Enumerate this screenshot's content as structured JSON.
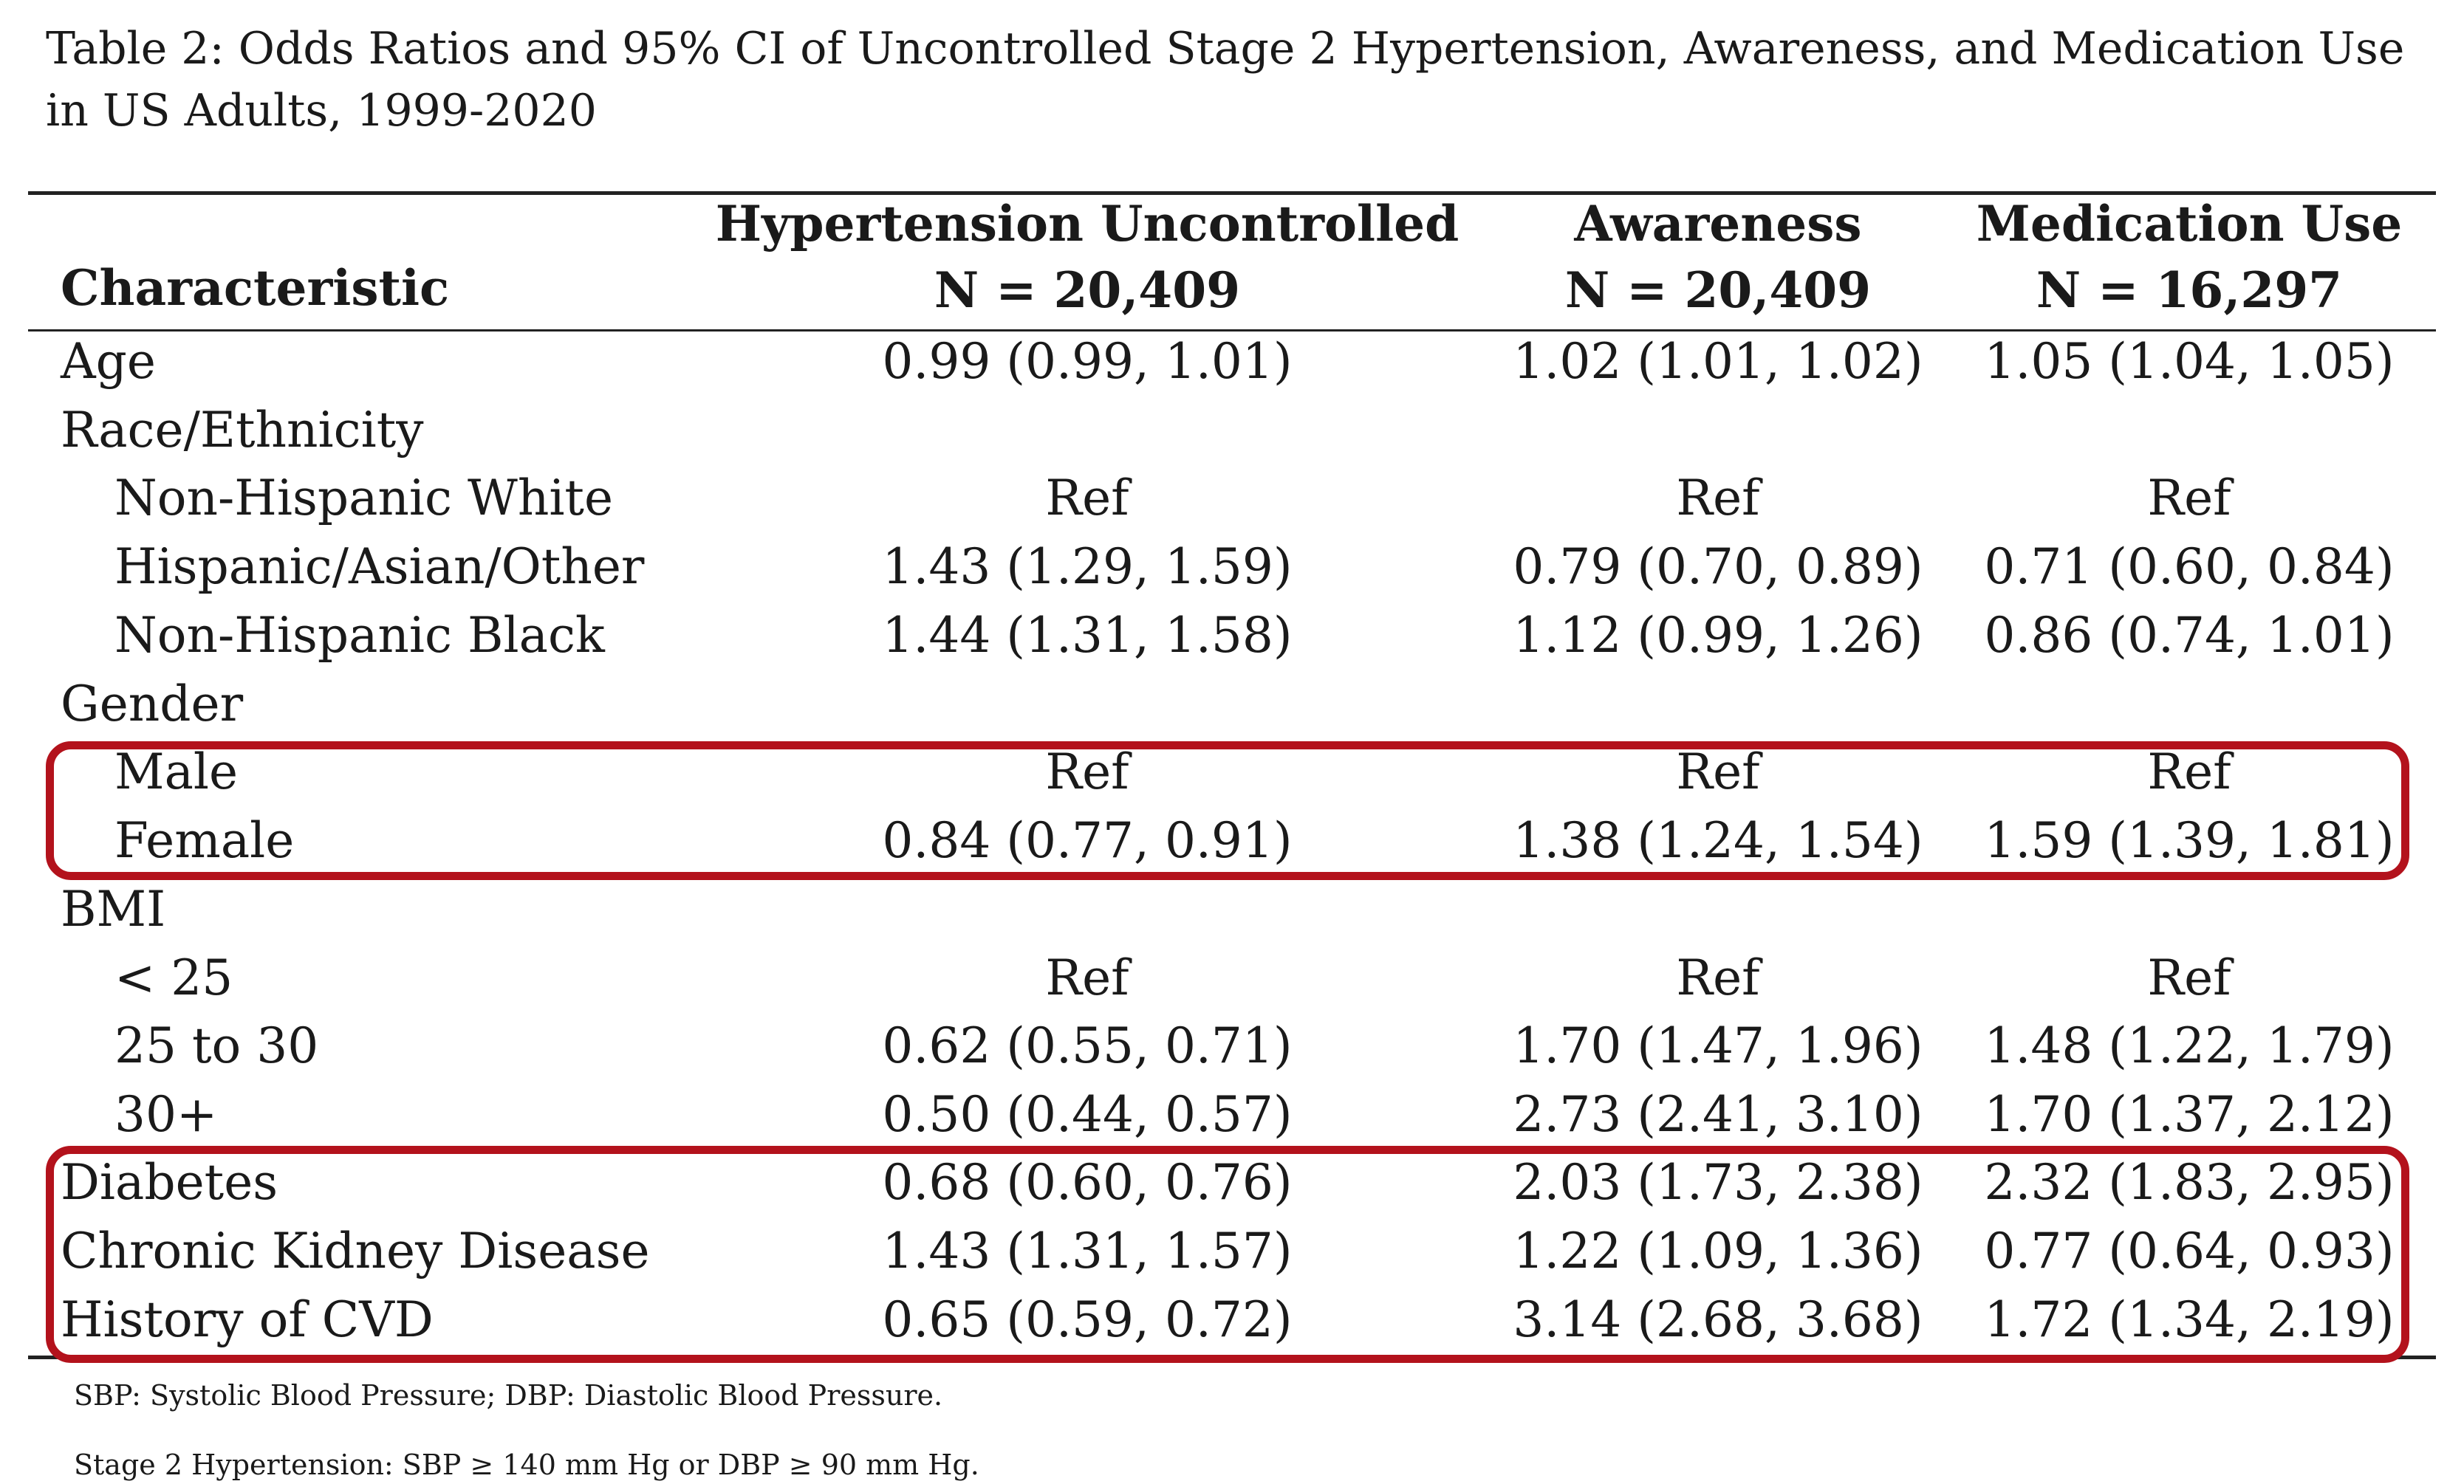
{
  "caption": {
    "line1": "Table 2: Odds Ratios and 95% CI of Uncontrolled Stage 2 Hypertension, Awareness, and Medication Use",
    "line2": "in US Adults, 1999-2020"
  },
  "table": {
    "columns": [
      {
        "header": "Characteristic",
        "subheader": ""
      },
      {
        "header": "Hypertension Uncontrolled",
        "subheader": "N = 20,409"
      },
      {
        "header": "Awareness",
        "subheader": "N = 20,409"
      },
      {
        "header": "Medication Use",
        "subheader": "N = 16,297"
      }
    ],
    "rows": [
      {
        "label": "Age",
        "indent": false,
        "values": [
          "0.99 (0.99, 1.01)",
          "1.02 (1.01, 1.02)",
          "1.05 (1.04, 1.05)"
        ]
      },
      {
        "label": "Race/Ethnicity",
        "indent": false,
        "values": [
          "",
          "",
          ""
        ]
      },
      {
        "label": "Non-Hispanic White",
        "indent": true,
        "values": [
          "Ref",
          "Ref",
          "Ref"
        ]
      },
      {
        "label": "Hispanic/Asian/Other",
        "indent": true,
        "values": [
          "1.43 (1.29, 1.59)",
          "0.79 (0.70, 0.89)",
          "0.71 (0.60, 0.84)"
        ]
      },
      {
        "label": "Non-Hispanic Black",
        "indent": true,
        "values": [
          "1.44 (1.31, 1.58)",
          "1.12 (0.99, 1.26)",
          "0.86 (0.74, 1.01)"
        ]
      },
      {
        "label": "Gender",
        "indent": false,
        "values": [
          "",
          "",
          ""
        ]
      },
      {
        "label": "Male",
        "indent": true,
        "values": [
          "Ref",
          "Ref",
          "Ref"
        ]
      },
      {
        "label": "Female",
        "indent": true,
        "values": [
          "0.84 (0.77, 0.91)",
          "1.38 (1.24, 1.54)",
          "1.59 (1.39, 1.81)"
        ]
      },
      {
        "label": "BMI",
        "indent": false,
        "values": [
          "",
          "",
          ""
        ]
      },
      {
        "label": "< 25",
        "indent": true,
        "values": [
          "Ref",
          "Ref",
          "Ref"
        ]
      },
      {
        "label": "25 to 30",
        "indent": true,
        "values": [
          "0.62 (0.55, 0.71)",
          "1.70 (1.47, 1.96)",
          "1.48 (1.22, 1.79)"
        ]
      },
      {
        "label": "30+",
        "indent": true,
        "values": [
          "0.50 (0.44, 0.57)",
          "2.73 (2.41, 3.10)",
          "1.70 (1.37, 2.12)"
        ]
      },
      {
        "label": "Diabetes",
        "indent": false,
        "values": [
          "0.68 (0.60, 0.76)",
          "2.03 (1.73, 2.38)",
          "2.32 (1.83, 2.95)"
        ]
      },
      {
        "label": "Chronic Kidney Disease",
        "indent": false,
        "values": [
          "1.43 (1.31, 1.57)",
          "1.22 (1.09, 1.36)",
          "0.77 (0.64, 0.93)"
        ]
      },
      {
        "label": "History of CVD",
        "indent": false,
        "values": [
          "0.65 (0.59, 0.72)",
          "3.14 (2.68, 3.68)",
          "1.72 (1.34, 2.19)"
        ]
      }
    ]
  },
  "highlights": {
    "color": "#b3121c",
    "gender_rows": [
      "Male",
      "Female"
    ],
    "condition_rows": [
      "Diabetes",
      "Chronic Kidney Disease",
      "History of CVD"
    ]
  },
  "footnotes": [
    "SBP: Systolic Blood Pressure; DBP: Diastolic Blood Pressure.",
    "Stage 2 Hypertension: SBP ≥ 140 mm Hg or DBP ≥ 90 mm Hg."
  ]
}
